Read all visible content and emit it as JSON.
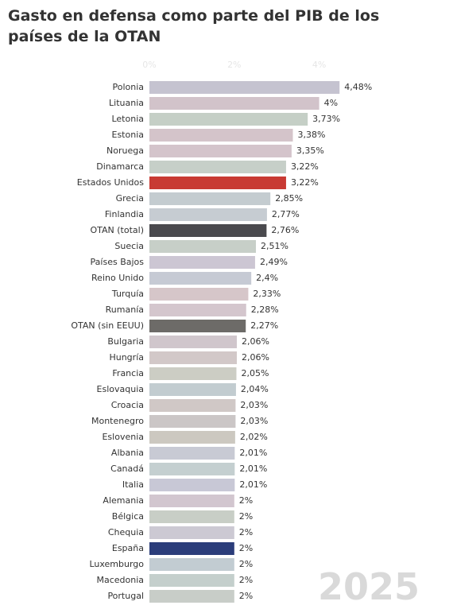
{
  "chart_data": {
    "type": "hbar",
    "title_lines": [
      "Gasto en defensa como parte del PIB de los",
      "países de la OTAN"
    ],
    "annotation": "2025",
    "categories": [
      "Polonia",
      "Lituania",
      "Letonia",
      "Estonia",
      "Noruega",
      "Dinamarca",
      "Estados Unidos",
      "Grecia",
      "Finlandia",
      "OTAN (total)",
      "Suecia",
      "Países Bajos",
      "Reino Unido",
      "Turquía",
      "Rumanía",
      "OTAN (sin EEUU)",
      "Bulgaria",
      "Hungría",
      "Francia",
      "Eslovaquia",
      "Croacia",
      "Montenegro",
      "Eslovenia",
      "Albania",
      "Canadá",
      "Italia",
      "Alemania",
      "Bélgica",
      "Chequia",
      "España",
      "Luxemburgo",
      "Macedonia",
      "Portugal"
    ],
    "values": [
      4.48,
      4,
      3.73,
      3.38,
      3.35,
      3.22,
      3.22,
      2.85,
      2.77,
      2.76,
      2.51,
      2.49,
      2.4,
      2.33,
      2.28,
      2.27,
      2.06,
      2.06,
      2.05,
      2.04,
      2.03,
      2.03,
      2.02,
      2.01,
      2.01,
      2.01,
      2,
      2,
      2,
      2,
      2,
      2,
      2
    ],
    "value_labels": [
      "4,48%",
      "4%",
      "3,73%",
      "3,38%",
      "3,35%",
      "3,22%",
      "3,22%",
      "2,85%",
      "2,77%",
      "2,76%",
      "2,51%",
      "2,49%",
      "2,4%",
      "2,33%",
      "2,28%",
      "2,27%",
      "2,06%",
      "2,06%",
      "2,05%",
      "2,04%",
      "2,03%",
      "2,03%",
      "2,02%",
      "2,01%",
      "2,01%",
      "2,01%",
      "2%",
      "2%",
      "2%",
      "2%",
      "2%",
      "2%",
      "2%"
    ],
    "colors": [
      "#c5c3d0",
      "#d2c3ca",
      "#c5cfc6",
      "#d4c4ca",
      "#d4c4cb",
      "#c6cfc8",
      "#c83a33",
      "#c4ccd0",
      "#c6ccd2",
      "#4a4a4e",
      "#c7cfc8",
      "#ccc6d3",
      "#c6cad4",
      "#d6c6c9",
      "#d4c6cd",
      "#6d6b68",
      "#d0c6cc",
      "#d2c8c8",
      "#cccdc4",
      "#c2ccd0",
      "#d0c8c6",
      "#cbc6c6",
      "#ccc8c0",
      "#c8cad4",
      "#c4cfd0",
      "#c8c8d6",
      "#d2c6cf",
      "#c8cec6",
      "#ccc9d3",
      "#2b3d7a",
      "#c2ccd2",
      "#c4cfcc",
      "#c8cdc8"
    ],
    "xlim": [
      0,
      5
    ],
    "xticks": [
      {
        "value": 0,
        "label": "0%"
      },
      {
        "value": 2,
        "label": "2%"
      },
      {
        "value": 4,
        "label": "4%"
      }
    ]
  }
}
